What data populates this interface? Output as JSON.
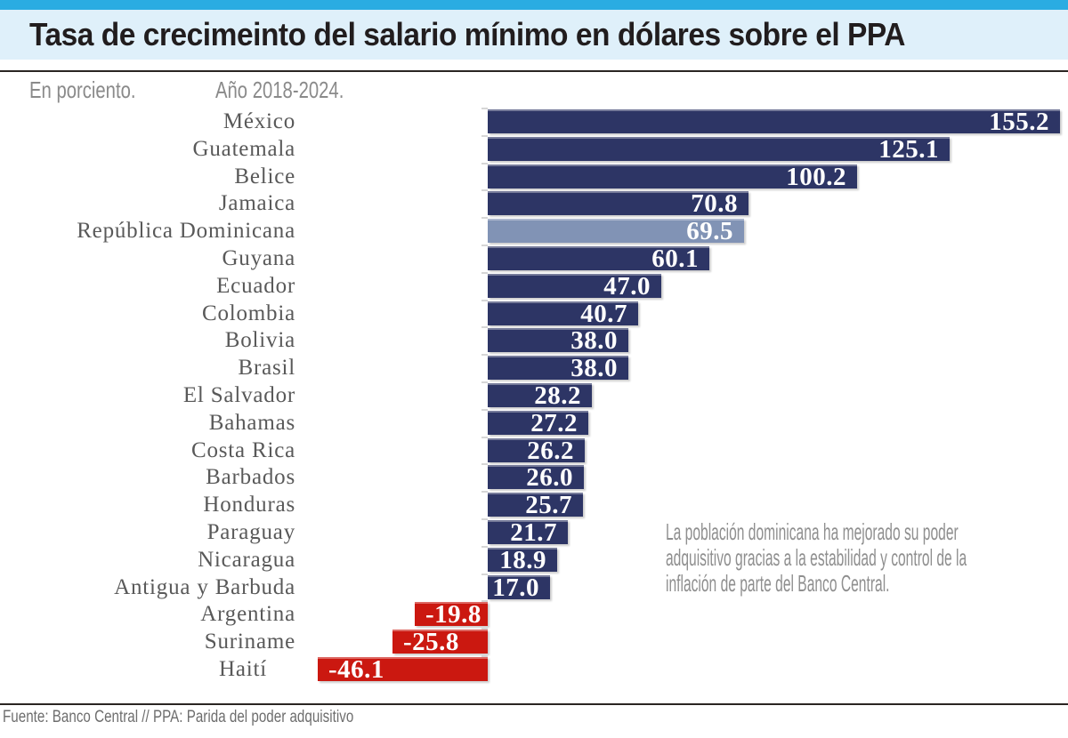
{
  "header": {
    "title": "Tasa de crecimeinto del salario mínimo en dólares sobre el PPA",
    "unit_note": "En porciento.",
    "period_note": "Año 2018-2024."
  },
  "annotation": {
    "text": "La población dominicana ha mejorado su poder adquisitivo gracias a la estabilidad y control de la inflación de parte del Banco Central."
  },
  "footer": {
    "source": "Fuente: Banco Central // PPA: Parida del poder adquisitivo"
  },
  "colors": {
    "accent_strip": "#2AACE2",
    "title_band": "#DFF0FA",
    "title_text": "#211D1E",
    "rule": "#2A2522",
    "bar_positive": "#2D3565",
    "bar_highlight": "#8193B5",
    "bar_negative": "#CB1810",
    "value_text": "#FFFFFF",
    "category_text": "#595959"
  },
  "chart_data": {
    "type": "bar",
    "orientation": "horizontal",
    "title": "Tasa de crecimeinto del salario mínimo en dólares sobre el PPA",
    "unit": "En porciento.",
    "period": "Año 2018-2024.",
    "grid": false,
    "xlim": [
      -46.1,
      155.2
    ],
    "value_labels_position": "inside-end",
    "categories": [
      "México",
      "Guatemala",
      "Belice",
      "Jamaica",
      "República Dominicana",
      "Guyana",
      "Ecuador",
      "Colombia",
      "Bolivia",
      "Brasil",
      "El Salvador",
      "Bahamas",
      "Costa Rica",
      "Barbados",
      "Honduras",
      "Paraguay",
      "Nicaragua",
      "Antigua y Barbuda",
      "Argentina",
      "Suriname",
      "Haití"
    ],
    "values": [
      155.2,
      125.1,
      100.2,
      70.8,
      69.5,
      60.1,
      47.0,
      40.7,
      38.0,
      38.0,
      28.2,
      27.2,
      26.2,
      26.0,
      25.7,
      21.7,
      18.9,
      17.0,
      -19.8,
      -25.8,
      -46.1
    ],
    "value_labels": [
      "155.2",
      "125.1",
      "100.2",
      "70.8",
      "69.5",
      "60.1",
      "47.0",
      "40.7",
      "38.0",
      "38.0",
      "28.2",
      "27.2",
      "26.2",
      "26.0",
      "25.7",
      "21.7",
      "18.9",
      "17.0",
      "-19.8",
      "-25.8",
      "-46.1"
    ],
    "bar_color": "#2D3565",
    "negative_bar_color": "#CB1810",
    "highlight": {
      "category": "República Dominicana",
      "index": 4,
      "color": "#8193B5"
    }
  }
}
